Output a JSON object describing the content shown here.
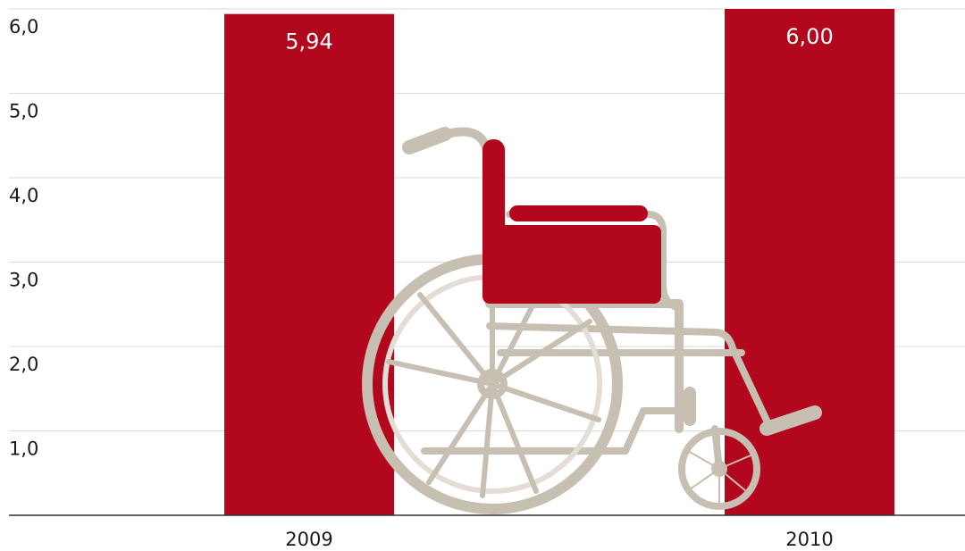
{
  "chart_data": {
    "type": "bar",
    "categories": [
      "2009",
      "2010"
    ],
    "values": [
      5.94,
      6.0
    ],
    "value_labels": [
      "5,94",
      "6,00"
    ],
    "color": "#b3071e",
    "ylim": [
      0,
      6
    ],
    "yticks": [
      {
        "value": 1,
        "label": "1,0"
      },
      {
        "value": 2,
        "label": "2,0"
      },
      {
        "value": 3,
        "label": "3,0"
      },
      {
        "value": 4,
        "label": "4,0"
      },
      {
        "value": 5,
        "label": "5,0"
      },
      {
        "value": 6,
        "label": "6,0"
      }
    ],
    "grid": true
  }
}
